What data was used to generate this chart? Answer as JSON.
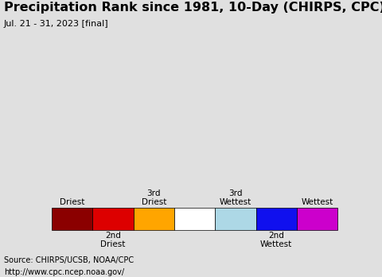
{
  "title": "Precipitation Rank since 1981, 10-Day (CHIRPS, CPC)",
  "subtitle": "Jul. 21 - 31, 2023 [final]",
  "source_line1": "Source: CHIRPS/UCSB, NOAA/CPC",
  "source_line2": "http://www.cpc.ncep.noaa.gov/",
  "legend_colors": [
    "#8B0000",
    "#DD0000",
    "#FFA500",
    "#FFFFFF",
    "#ADD8E6",
    "#1010EE",
    "#CC00CC"
  ],
  "map_ocean_color": "#A8E0F0",
  "map_land_color": "#FFFFFF",
  "map_border_color": "#000000",
  "legend_bg_color": "#E8E8E8",
  "source_bg_color": "#D8D8D8",
  "background_color": "#E0E0E0",
  "title_fontsize": 11.5,
  "subtitle_fontsize": 8,
  "legend_fontsize": 7.5,
  "source_fontsize": 7
}
